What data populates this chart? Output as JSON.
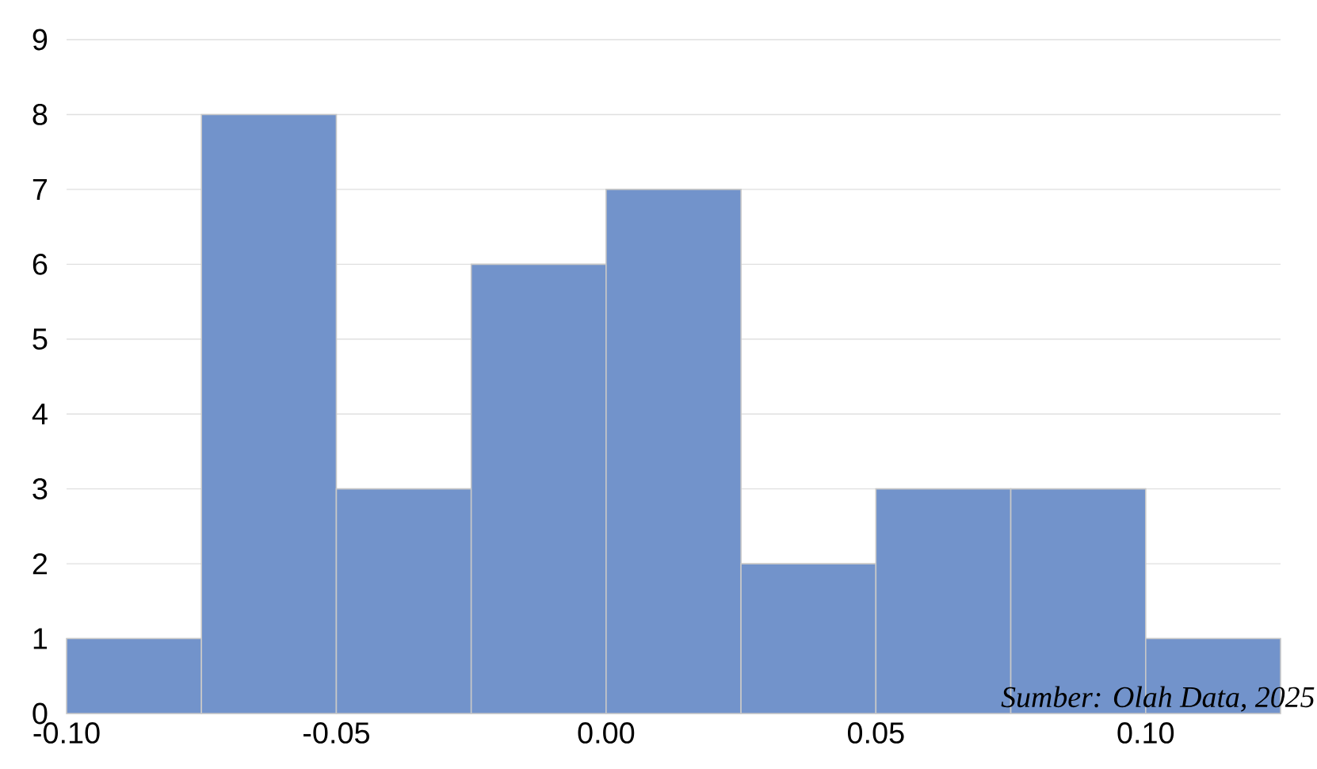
{
  "chart_data": {
    "type": "histogram",
    "bins": [
      -0.1,
      -0.075,
      -0.05,
      -0.025,
      0,
      0.025,
      0.05,
      0.075,
      0.1,
      0.125
    ],
    "values": [
      1,
      8,
      3,
      6,
      7,
      2,
      3,
      3,
      1
    ],
    "color": "#7293cb",
    "xlim": [
      -0.1,
      0.125
    ],
    "xticks": [
      {
        "value": -0.1,
        "label": "-0.10"
      },
      {
        "value": -0.05,
        "label": "-0.05"
      },
      {
        "value": 0,
        "label": "0.00"
      },
      {
        "value": 0.05,
        "label": "0.05"
      },
      {
        "value": 0.1,
        "label": "0.10"
      }
    ],
    "ylim": [
      0,
      9
    ],
    "yticks": [
      0,
      1,
      2,
      3,
      4,
      5,
      6,
      7,
      8,
      9
    ],
    "grid": "y",
    "annotations": [
      "Sumber: Olah Data, 2025"
    ]
  }
}
